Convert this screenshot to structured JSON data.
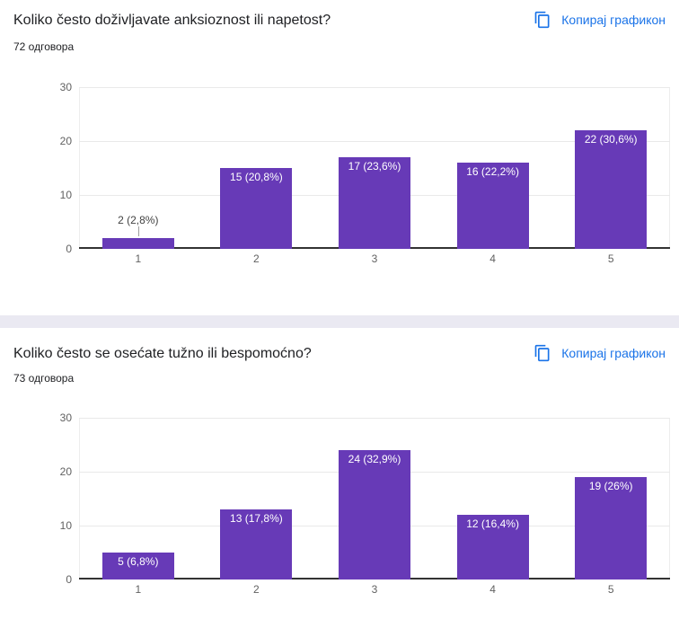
{
  "colors": {
    "bar": "#673ab7",
    "link": "#1a73e8",
    "divider": "#eae9f2",
    "title_text": "#202124",
    "axis_label": "#616161",
    "grid": "#e9e9e9",
    "baseline": "#333333"
  },
  "sections": [
    {
      "title": "Koliko često doživljavate anksioznost ili napetost?",
      "responses": "72 одговора",
      "copy_button": "Копирај графикон"
    },
    {
      "title": "Koliko često se osećate tužno ili bespomoćno?",
      "responses": "73 одговора",
      "copy_button": "Копирај графикон"
    }
  ],
  "chart_data": [
    {
      "type": "bar",
      "title": "Koliko često doživljavate anksioznost ili napetost?",
      "subtitle": "72 одговора",
      "categories": [
        "1",
        "2",
        "3",
        "4",
        "5"
      ],
      "values": [
        2,
        15,
        17,
        16,
        22
      ],
      "labels": [
        "2 (2,8%)",
        "15 (20,8%)",
        "17 (23,6%)",
        "16 (22,2%)",
        "22 (30,6%)"
      ],
      "xlabel": "",
      "ylabel": "",
      "ylim": [
        0,
        30
      ],
      "yticks": [
        0,
        10,
        20,
        30
      ],
      "grid": true,
      "legend": "none",
      "bar_color": "#673ab7"
    },
    {
      "type": "bar",
      "title": "Koliko često se osećate tužno ili bespomoćno?",
      "subtitle": "73 одговора",
      "categories": [
        "1",
        "2",
        "3",
        "4",
        "5"
      ],
      "values": [
        5,
        13,
        24,
        12,
        19
      ],
      "labels": [
        "5 (6,8%)",
        "13 (17,8%)",
        "24 (32,9%)",
        "12 (16,4%)",
        "19 (26%)"
      ],
      "xlabel": "",
      "ylabel": "",
      "ylim": [
        0,
        30
      ],
      "yticks": [
        0,
        10,
        20,
        30
      ],
      "grid": true,
      "legend": "none",
      "bar_color": "#673ab7"
    }
  ]
}
